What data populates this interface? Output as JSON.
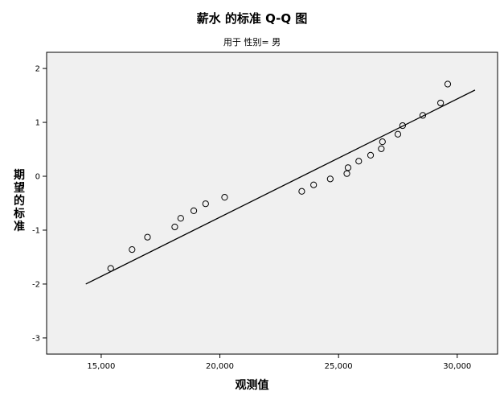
{
  "chart_data": {
    "type": "scatter",
    "title": "薪水 的标准 Q-Q 图",
    "subtitle": "用于 性别= 男",
    "xlabel": "观测值",
    "ylabel": "期望的标准",
    "xlim": [
      12700,
      31700
    ],
    "ylim": [
      -3.3,
      2.3
    ],
    "x_ticks": [
      15000,
      20000,
      25000,
      30000
    ],
    "x_tick_labels": [
      "15,000",
      "20,000",
      "25,000",
      "30,000"
    ],
    "y_ticks": [
      -3,
      -2,
      -1,
      0,
      1,
      2
    ],
    "y_tick_labels": [
      "-3",
      "-2",
      "-1",
      "0",
      "1",
      "2"
    ],
    "points": [
      {
        "x": 15400,
        "y": -1.71
      },
      {
        "x": 16300,
        "y": -1.36
      },
      {
        "x": 16950,
        "y": -1.13
      },
      {
        "x": 18100,
        "y": -0.94
      },
      {
        "x": 18350,
        "y": -0.78
      },
      {
        "x": 18900,
        "y": -0.64
      },
      {
        "x": 19400,
        "y": -0.51
      },
      {
        "x": 20200,
        "y": -0.39
      },
      {
        "x": 23450,
        "y": -0.28
      },
      {
        "x": 23950,
        "y": -0.16
      },
      {
        "x": 24650,
        "y": -0.05
      },
      {
        "x": 25350,
        "y": 0.05
      },
      {
        "x": 25400,
        "y": 0.16
      },
      {
        "x": 25850,
        "y": 0.28
      },
      {
        "x": 26350,
        "y": 0.39
      },
      {
        "x": 26800,
        "y": 0.51
      },
      {
        "x": 26850,
        "y": 0.64
      },
      {
        "x": 27500,
        "y": 0.78
      },
      {
        "x": 27700,
        "y": 0.94
      },
      {
        "x": 28550,
        "y": 1.13
      },
      {
        "x": 29300,
        "y": 1.36
      },
      {
        "x": 29600,
        "y": 1.71
      }
    ],
    "reference_line": {
      "x": [
        14350,
        30750
      ],
      "y": [
        -2.0,
        1.6
      ]
    },
    "colors": {
      "plot_background": "#f0f0f0",
      "marker": "#000000",
      "line": "#000000"
    },
    "grid": false,
    "legend": "none"
  }
}
